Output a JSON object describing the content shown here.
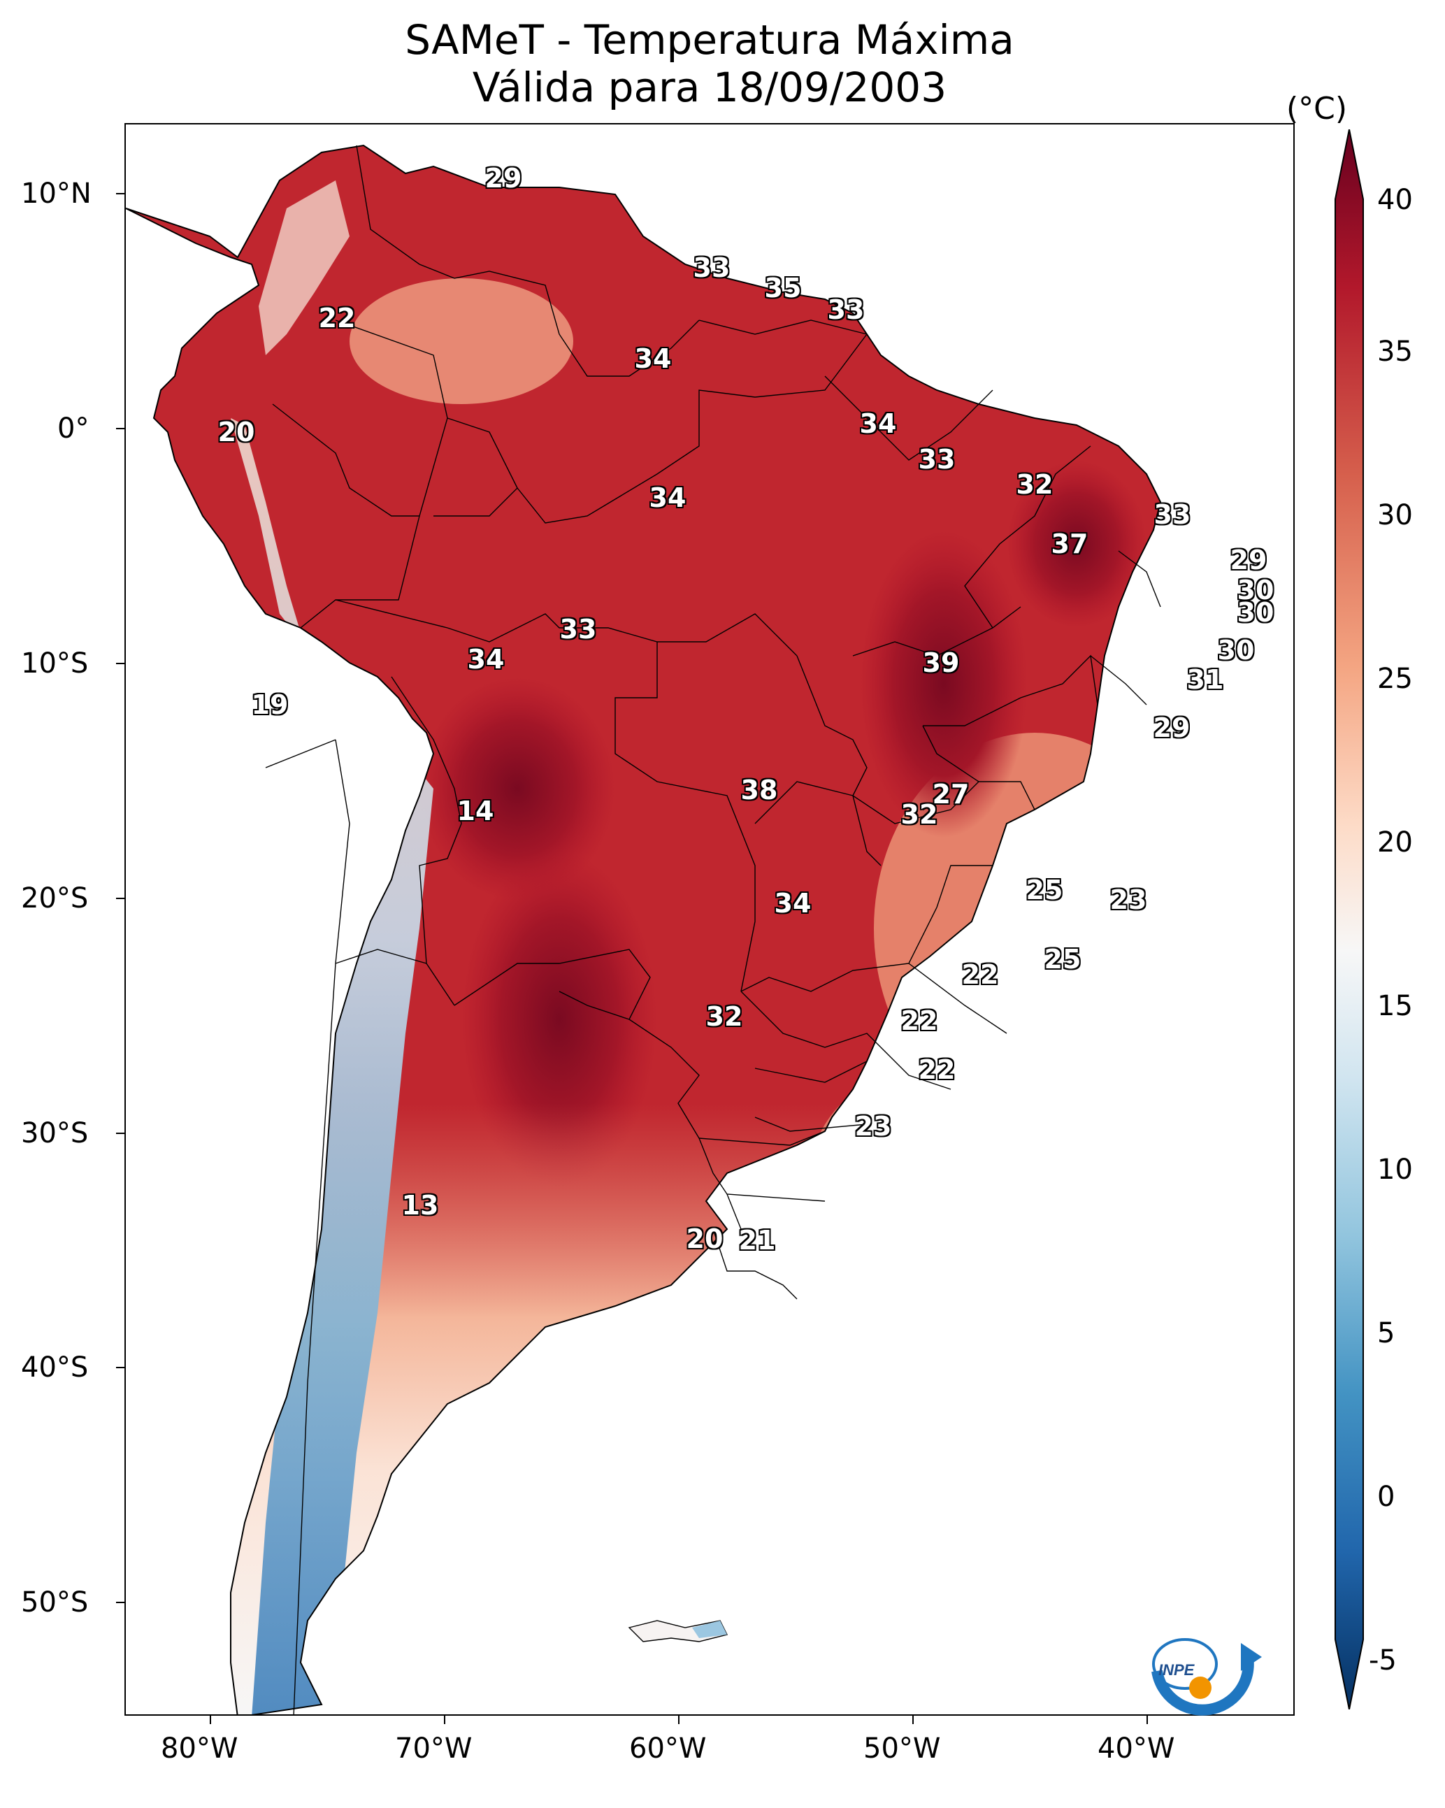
{
  "title": {
    "line1": "SAMeT - Temperatura Máxima",
    "line2": "Válida para 18/09/2003"
  },
  "axes": {
    "lon_ticks": [
      "80°W",
      "70°W",
      "60°W",
      "50°W",
      "40°W"
    ],
    "lat_ticks": [
      "10°N",
      "0°",
      "10°S",
      "20°S",
      "30°S",
      "40°S",
      "50°S"
    ]
  },
  "colorbar": {
    "unit": "(°C)",
    "ticks": [
      "40",
      "35",
      "30",
      "25",
      "20",
      "15",
      "10",
      "5",
      "0",
      "-5"
    ],
    "colors": [
      "#67001f",
      "#b2182b",
      "#d6604d",
      "#f4a582",
      "#fddbc7",
      "#f7f7f7",
      "#d1e5f0",
      "#92c5de",
      "#4393c3",
      "#2166ac",
      "#053061"
    ]
  },
  "city_values": [
    {
      "label": "29"
    },
    {
      "label": "22"
    },
    {
      "label": "33"
    },
    {
      "label": "35"
    },
    {
      "label": "33"
    },
    {
      "label": "34"
    },
    {
      "label": "20"
    },
    {
      "label": "34"
    },
    {
      "label": "34"
    },
    {
      "label": "33"
    },
    {
      "label": "32"
    },
    {
      "label": "33"
    },
    {
      "label": "37"
    },
    {
      "label": "29"
    },
    {
      "label": "30"
    },
    {
      "label": "30"
    },
    {
      "label": "33"
    },
    {
      "label": "34"
    },
    {
      "label": "39"
    },
    {
      "label": "30"
    },
    {
      "label": "31"
    },
    {
      "label": "19"
    },
    {
      "label": "29"
    },
    {
      "label": "14"
    },
    {
      "label": "38"
    },
    {
      "label": "27"
    },
    {
      "label": "32"
    },
    {
      "label": "25"
    },
    {
      "label": "23"
    },
    {
      "label": "34"
    },
    {
      "label": "25"
    },
    {
      "label": "22"
    },
    {
      "label": "32"
    },
    {
      "label": "22"
    },
    {
      "label": "22"
    },
    {
      "label": "23"
    },
    {
      "label": "13"
    },
    {
      "label": "20"
    },
    {
      "label": "21"
    }
  ],
  "logo": {
    "text": "INPE"
  }
}
